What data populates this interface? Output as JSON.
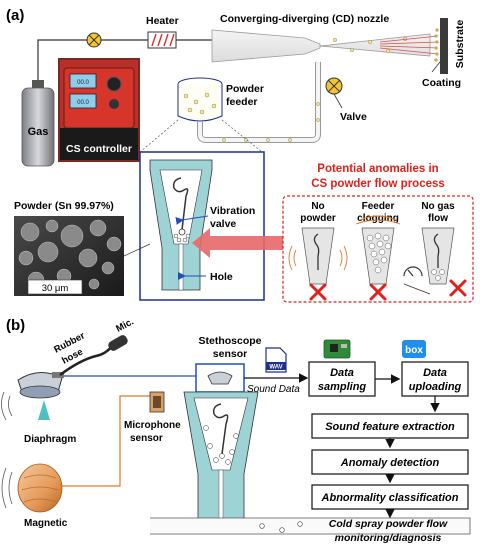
{
  "panel_a": {
    "label": "(a)",
    "heater": "Heater",
    "nozzle": "Converging-diverging (CD) nozzle",
    "substrate": "Substrate",
    "coating": "Coating",
    "gas": "Gas",
    "controller": "CS controller",
    "feeder_line1": "Powder",
    "feeder_line2": "feeder",
    "valve": "Valve",
    "powder": "Powder (Sn 99.97%)",
    "scale": "30 μm",
    "vib_line1": "Vibration",
    "vib_line2": "valve",
    "hole": "Hole",
    "anomaly_line1": "Potential anomalies in",
    "anomaly_line2": "CS powder flow process",
    "case1_line1": "No",
    "case1_line2": "powder",
    "case2_line1": "Feeder",
    "case2_line2": "clogging",
    "case3_line1": "No gas",
    "case3_line2": "flow"
  },
  "panel_b": {
    "label": "(b)",
    "rubber_line1": "Rubber",
    "rubber_line2": "hose",
    "mic": "Mic.",
    "steth_line1": "Stethoscope",
    "steth_line2": "sensor",
    "wav": "WAV",
    "sound_data": "Sound Data",
    "diaphragm": "Diaphragm",
    "micsensor_line1": "Microphone",
    "micsensor_line2": "sensor",
    "magnetic": "Magnetic",
    "box_brand": "box",
    "flow_line1": "Cold spray powder flow",
    "flow_line2": "monitoring/diagnosis",
    "steps": {
      "sampling_line1": "Data",
      "sampling_line2": "sampling",
      "uploading_line1": "Data",
      "uploading_line2": "uploading",
      "feature": "Sound feature extraction",
      "anomaly": "Anomaly detection",
      "classification": "Abnormality classification"
    }
  },
  "colors": {
    "red": "#e0201a",
    "navy": "#1f2f8f",
    "teal": "#9ed3d6",
    "valve": "#f3c531",
    "orange": "#e07a2a"
  }
}
